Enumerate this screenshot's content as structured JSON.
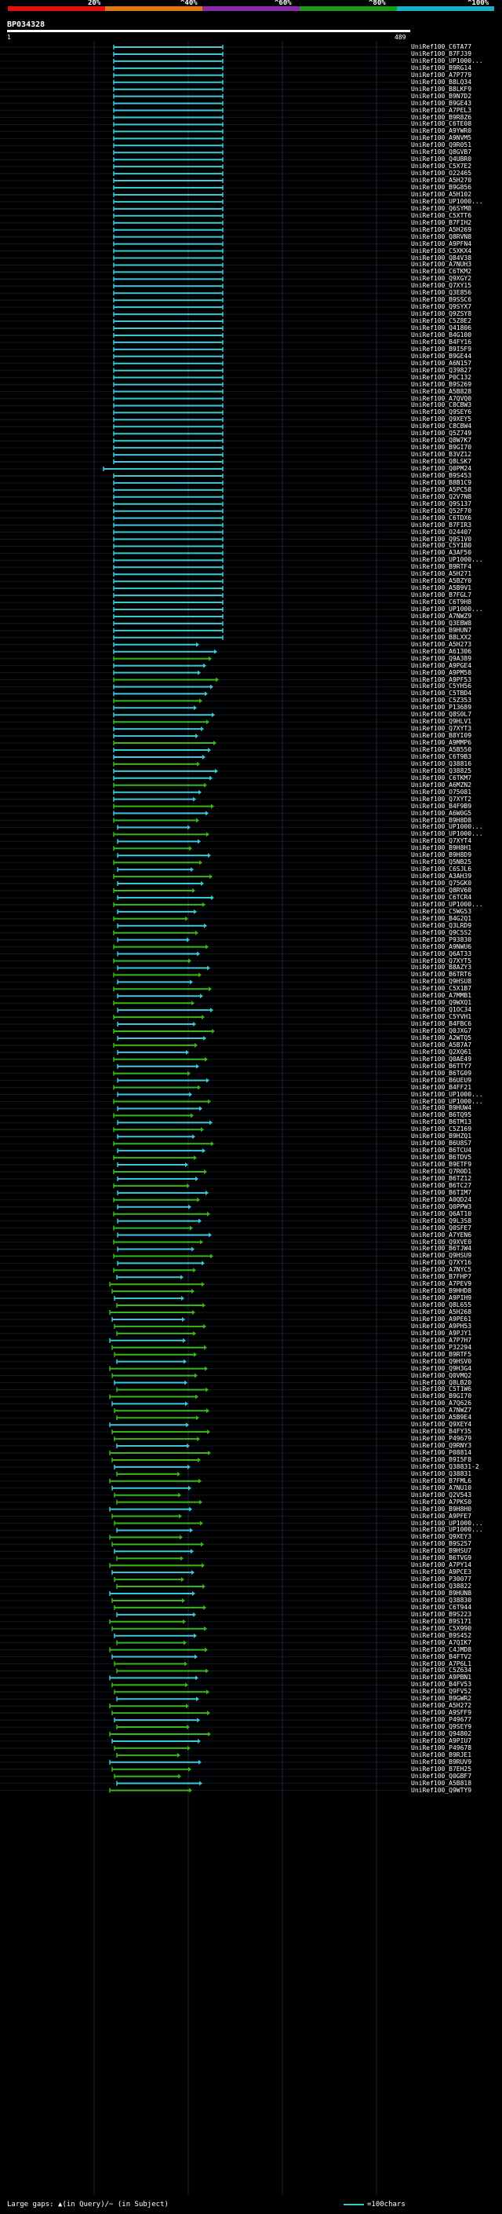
{
  "legend": {
    "colors": [
      "#e01010",
      "#e07818",
      "#8a2aa8",
      "#1a9a1a",
      "#18b0c8"
    ],
    "labels": [
      "20%",
      "^40%",
      "^60%",
      "^80%",
      "^100%"
    ]
  },
  "query_id": "BP034328",
  "ruler": {
    "start": "1",
    "end": "489"
  },
  "footer": {
    "large_gaps": "Large gaps: ▲(in Query)/~ (in Subject)",
    "scale": "=100chars"
  },
  "hits": [
    "UniRef100_C6TA77",
    "UniRef100_B7FJ39",
    "UniRef100_UP1000...",
    "UniRef100_B9RG14",
    "UniRef100_A7P779",
    "UniRef100_B8LQ34",
    "UniRef100_B8LKF9",
    "UniRef100_B9N7D2",
    "UniRef100_B9GE43",
    "UniRef100_A7PEL3",
    "UniRef100_B9R8Z6",
    "UniRef100_C6TE08",
    "UniRef100_A9YWR0",
    "UniRef100_A9NVM5",
    "UniRef100_Q9R051",
    "UniRef100_Q8GVB7",
    "UniRef100_Q4UBR0",
    "UniRef100_C5X7E2",
    "UniRef100_O22465",
    "UniRef100_A5H270",
    "UniRef100_B9G856",
    "UniRef100_A5H102",
    "UniRef100_UP1000...",
    "UniRef100_Q6SYM8",
    "UniRef100_C5XTT6",
    "UniRef100_B7FIH2",
    "UniRef100_A5H269",
    "UniRef100_Q8RVN8",
    "UniRef100_A9PFN4",
    "UniRef100_C5XKX4",
    "UniRef100_Q84V38",
    "UniRef100_A7NUH3",
    "UniRef100_C6TKM2",
    "UniRef100_Q9XGY2",
    "UniRef100_Q7XY15",
    "UniRef100_Q3E856",
    "UniRef100_B9SSC6",
    "UniRef100_Q9SYX7",
    "UniRef100_Q9ZSY8",
    "UniRef100_C5Z8E2",
    "UniRef100_Q41806",
    "UniRef100_B4G100",
    "UniRef100_B4FY16",
    "UniRef100_B9I5F9",
    "UniRef100_B9GE44",
    "UniRef100_A6N157",
    "UniRef100_Q39827",
    "UniRef100_P0C132",
    "UniRef100_B9S269",
    "UniRef100_A5B828",
    "UniRef100_A7QVQ0",
    "UniRef100_C8CBW3",
    "UniRef100_Q9SEY6",
    "UniRef100_Q9XEY5",
    "UniRef100_C8CBW4",
    "UniRef100_Q5Z749",
    "UniRef100_Q8W7K7",
    "UniRef100_B9GI70",
    "UniRef100_B3VZ12",
    "UniRef100_Q8LSK7",
    "UniRef100_Q0PM24",
    "UniRef100_B9S453",
    "UniRef100_B8B1C9",
    "UniRef100_A5PC58",
    "UniRef100_Q2V7N8",
    "UniRef100_Q9S137",
    "UniRef100_Q52F70",
    "UniRef100_C6TDX6",
    "UniRef100_B7FIR3",
    "UniRef100_O24407",
    "UniRef100_Q9S1V0",
    "UniRef100_C5Y1B0",
    "UniRef100_A3AF50",
    "UniRef100_UP1000...",
    "UniRef100_B9RTF4",
    "UniRef100_A5H271",
    "UniRef100_A5BZY0",
    "UniRef100_A5B9V1",
    "UniRef100_B7FGL7",
    "UniRef100_C6T9H8",
    "UniRef100_UP1000...",
    "UniRef100_A7NWZ9",
    "UniRef100_Q3EBW8",
    "UniRef100_B9HUN7",
    "UniRef100_B8LXX2",
    "UniRef100_A5H273",
    "UniRef100_A61306",
    "UniRef100_Q9A389",
    "UniRef100_A9PGE4",
    "UniRef100_A9PM58",
    "UniRef100_A9PF53",
    "UniRef100_C5YH56",
    "UniRef100_C5TBD4",
    "UniRef100_C5Z353",
    "UniRef100_P13689",
    "UniRef100_Q8S0L7",
    "UniRef100_Q9HLV1",
    "UniRef100_Q7XYT3",
    "UniRef100_B8YI09",
    "UniRef100_A9MMP6",
    "UniRef100_A5B550",
    "UniRef100_C6T9B3",
    "UniRef100_Q38816",
    "UniRef100_Q38825",
    "UniRef100_C6TKM7",
    "UniRef100_A6MZN2",
    "UniRef100_O75081",
    "UniRef100_Q7XYT2",
    "UniRef100_B4F9B9",
    "UniRef100_A6W0G5",
    "UniRef100_B9H8D8",
    "UniRef100_UP1000...",
    "UniRef100_UP1000...",
    "UniRef100_Q7XYT4",
    "UniRef100_B9H8H1",
    "UniRef100_B9H8D9",
    "UniRef100_Q5NB25",
    "UniRef100_C6SJL6",
    "UniRef100_A3AH39",
    "UniRef100_Q75GK0",
    "UniRef100_Q8RV60",
    "UniRef100_C6TCR4",
    "UniRef100_UP1000...",
    "UniRef100_C5WG53",
    "UniRef100_B4G2Q1",
    "UniRef100_Q3LRD9",
    "UniRef100_Q9C5S2",
    "UniRef100_P93830",
    "UniRef100_A9NWU6",
    "UniRef100_Q6AT33",
    "UniRef100_Q7XYT5",
    "UniRef100_B8AZY3",
    "UniRef100_B6TRT6",
    "UniRef100_Q9HSU8",
    "UniRef100_C5X1B7",
    "UniRef100_A7MMB1",
    "UniRef100_Q9WXQ1",
    "UniRef100_Q1OC34",
    "UniRef100_C5YVH1",
    "UniRef100_B4FBC6",
    "UniRef100_Q0JXG7",
    "UniRef100_A2WTQ5",
    "UniRef100_A5B7A7",
    "UniRef100_Q2XQ61",
    "UniRef100_Q0AE49",
    "UniRef100_B6TTY7",
    "UniRef100_B6TG09",
    "UniRef100_B6UEU9",
    "UniRef100_B4FF21",
    "UniRef100_UP1000...",
    "UniRef100_UP1000...",
    "UniRef100_B9HUW4",
    "UniRef100_B6TQ95",
    "UniRef100_B6TM13",
    "UniRef100_C5Z169",
    "UniRef100_B9HZQ1",
    "UniRef100_B6U8S7",
    "UniRef100_B6TCU4",
    "UniRef100_B6TDV5",
    "UniRef100_B9ETF9",
    "UniRef100_Q7R0D1",
    "UniRef100_B6TZ12",
    "UniRef100_B6TC27",
    "UniRef100_B6TIM7",
    "UniRef100_A0QD24",
    "UniRef100_Q0PPW3",
    "UniRef100_Q6AT10",
    "UniRef100_Q9L3S8",
    "UniRef100_Q0SFE7",
    "UniRef100_A7YEN6",
    "UniRef100_Q9XVE0",
    "UniRef100_B6TJW4",
    "UniRef100_Q9HSU9",
    "UniRef100_Q7XY16",
    "UniRef100_A7NYC5",
    "UniRef100_B7FHP7",
    "UniRef100_A7PEV9",
    "UniRef100_B9HHD8",
    "UniRef100_A9PIH9",
    "UniRef100_Q8L655",
    "UniRef100_A5H268",
    "UniRef100_A9PE61",
    "UniRef100_A9PH53",
    "UniRef100_A9PJY1",
    "UniRef100_A7P7H7",
    "UniRef100_P32294",
    "UniRef100_B9RTF5",
    "UniRef100_Q9HSV0",
    "UniRef100_Q9H3G4",
    "UniRef100_Q0VMQ2",
    "UniRef100_Q8LB20",
    "UniRef100_C5T1W6",
    "UniRef100_B9GI70",
    "UniRef100_A7Q626",
    "UniRef100_A7NWZ7",
    "UniRef100_A5B9E4",
    "UniRef100_Q9XEY4",
    "UniRef100_B4FY35",
    "UniRef100_P49679",
    "UniRef100_Q9RNY3",
    "UniRef100_P08814",
    "UniRef100_B9I5F8",
    "UniRef100_Q38831-2",
    "UniRef100_Q38831",
    "UniRef100_B7FML6",
    "UniRef100_A7NU10",
    "UniRef100_Q2V543",
    "UniRef100_A7PKS0",
    "UniRef100_B9H8H0",
    "UniRef100_A9PFE7",
    "UniRef100_UP1000...",
    "UniRef100_UP1000...",
    "UniRef100_Q9XEY3",
    "UniRef100_B9S257",
    "UniRef100_B9HSU7",
    "UniRef100_B6TVG9",
    "UniRef100_A7PY14",
    "UniRef100_A9PCE3",
    "UniRef100_P30077",
    "UniRef100_Q38822",
    "UniRef100_B9HUN8",
    "UniRef100_Q38830",
    "UniRef100_C6T944",
    "UniRef100_B9S223",
    "UniRef100_B9S171",
    "UniRef100_C5X990",
    "UniRef100_B9S452",
    "UniRef100_A7QIK7",
    "UniRef100_C4JMD8",
    "UniRef100_B4FTV2",
    "UniRef100_A7P6L1",
    "UniRef100_C5Z634",
    "UniRef100_A9PBN1",
    "UniRef100_B4FV53",
    "UniRef100_Q9FV52",
    "UniRef100_B9GWR2",
    "UniRef100_A5H272",
    "UniRef100_A9SFF9",
    "UniRef100_P49677",
    "UniRef100_Q9SEY9",
    "UniRef100_Q94802",
    "UniRef100_A9PIU7",
    "UniRef100_P49678",
    "UniRef100_B9RJE1",
    "UniRef100_B9RUV9",
    "UniRef100_B7EH25",
    "UniRef100_Q0GBF7",
    "UniRef100_A5B818",
    "UniRef100_Q9WTY9"
  ]
}
